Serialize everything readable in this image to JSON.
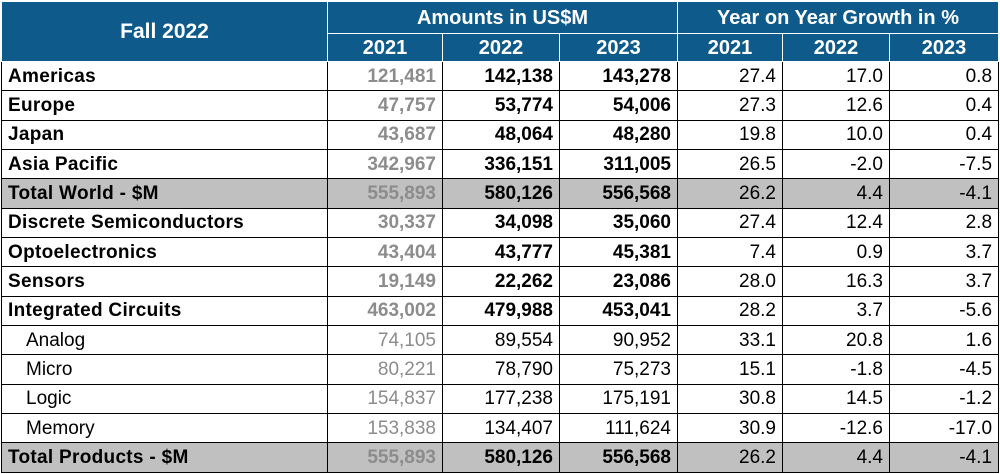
{
  "chart_data": {
    "type": "table",
    "corner_label": "Fall 2022",
    "group_headers": [
      "Amounts in US$M",
      "Year on Year Growth in %"
    ],
    "columns": [
      "2021",
      "2022",
      "2023",
      "2021",
      "2022",
      "2023"
    ],
    "rows": [
      {
        "label": "Americas",
        "style": "bold",
        "amounts": [
          "121,481",
          "142,138",
          "143,278"
        ],
        "growth": [
          "27.4",
          "17.0",
          "0.8"
        ]
      },
      {
        "label": "Europe",
        "style": "bold",
        "amounts": [
          "47,757",
          "53,774",
          "54,006"
        ],
        "growth": [
          "27.3",
          "12.6",
          "0.4"
        ]
      },
      {
        "label": "Japan",
        "style": "bold",
        "amounts": [
          "43,687",
          "48,064",
          "48,280"
        ],
        "growth": [
          "19.8",
          "10.0",
          "0.4"
        ]
      },
      {
        "label": "Asia Pacific",
        "style": "bold",
        "amounts": [
          "342,967",
          "336,151",
          "311,005"
        ],
        "growth": [
          "26.5",
          "-2.0",
          "-7.5"
        ]
      },
      {
        "label": "Total World - $M",
        "style": "total",
        "amounts": [
          "555,893",
          "580,126",
          "556,568"
        ],
        "growth": [
          "26.2",
          "4.4",
          "-4.1"
        ]
      },
      {
        "label": "Discrete Semiconductors",
        "style": "bold",
        "amounts": [
          "30,337",
          "34,098",
          "35,060"
        ],
        "growth": [
          "27.4",
          "12.4",
          "2.8"
        ]
      },
      {
        "label": "Optoelectronics",
        "style": "bold",
        "amounts": [
          "43,404",
          "43,777",
          "45,381"
        ],
        "growth": [
          "7.4",
          "0.9",
          "3.7"
        ]
      },
      {
        "label": "Sensors",
        "style": "bold",
        "amounts": [
          "19,149",
          "22,262",
          "23,086"
        ],
        "growth": [
          "28.0",
          "16.3",
          "3.7"
        ]
      },
      {
        "label": "Integrated Circuits",
        "style": "bold",
        "amounts": [
          "463,002",
          "479,988",
          "453,041"
        ],
        "growth": [
          "28.2",
          "3.7",
          "-5.6"
        ]
      },
      {
        "label": "Analog",
        "style": "sub",
        "amounts": [
          "74,105",
          "89,554",
          "90,952"
        ],
        "growth": [
          "33.1",
          "20.8",
          "1.6"
        ]
      },
      {
        "label": "Micro",
        "style": "sub",
        "amounts": [
          "80,221",
          "78,790",
          "75,273"
        ],
        "growth": [
          "15.1",
          "-1.8",
          "-4.5"
        ]
      },
      {
        "label": "Logic",
        "style": "sub",
        "amounts": [
          "154,837",
          "177,238",
          "175,191"
        ],
        "growth": [
          "30.8",
          "14.5",
          "-1.2"
        ]
      },
      {
        "label": "Memory",
        "style": "sub",
        "amounts": [
          "153,838",
          "134,407",
          "111,624"
        ],
        "growth": [
          "30.9",
          "-12.6",
          "-17.0"
        ]
      },
      {
        "label": "Total Products - $M",
        "style": "total",
        "amounts": [
          "555,893",
          "580,126",
          "556,568"
        ],
        "growth": [
          "26.2",
          "4.4",
          "-4.1"
        ]
      }
    ]
  },
  "colors": {
    "header_bg": "#0e5a8a",
    "header_text": "#ffffff",
    "total_row_bg": "#c0c0c0",
    "prior_year_text": "#8c8c8c"
  }
}
